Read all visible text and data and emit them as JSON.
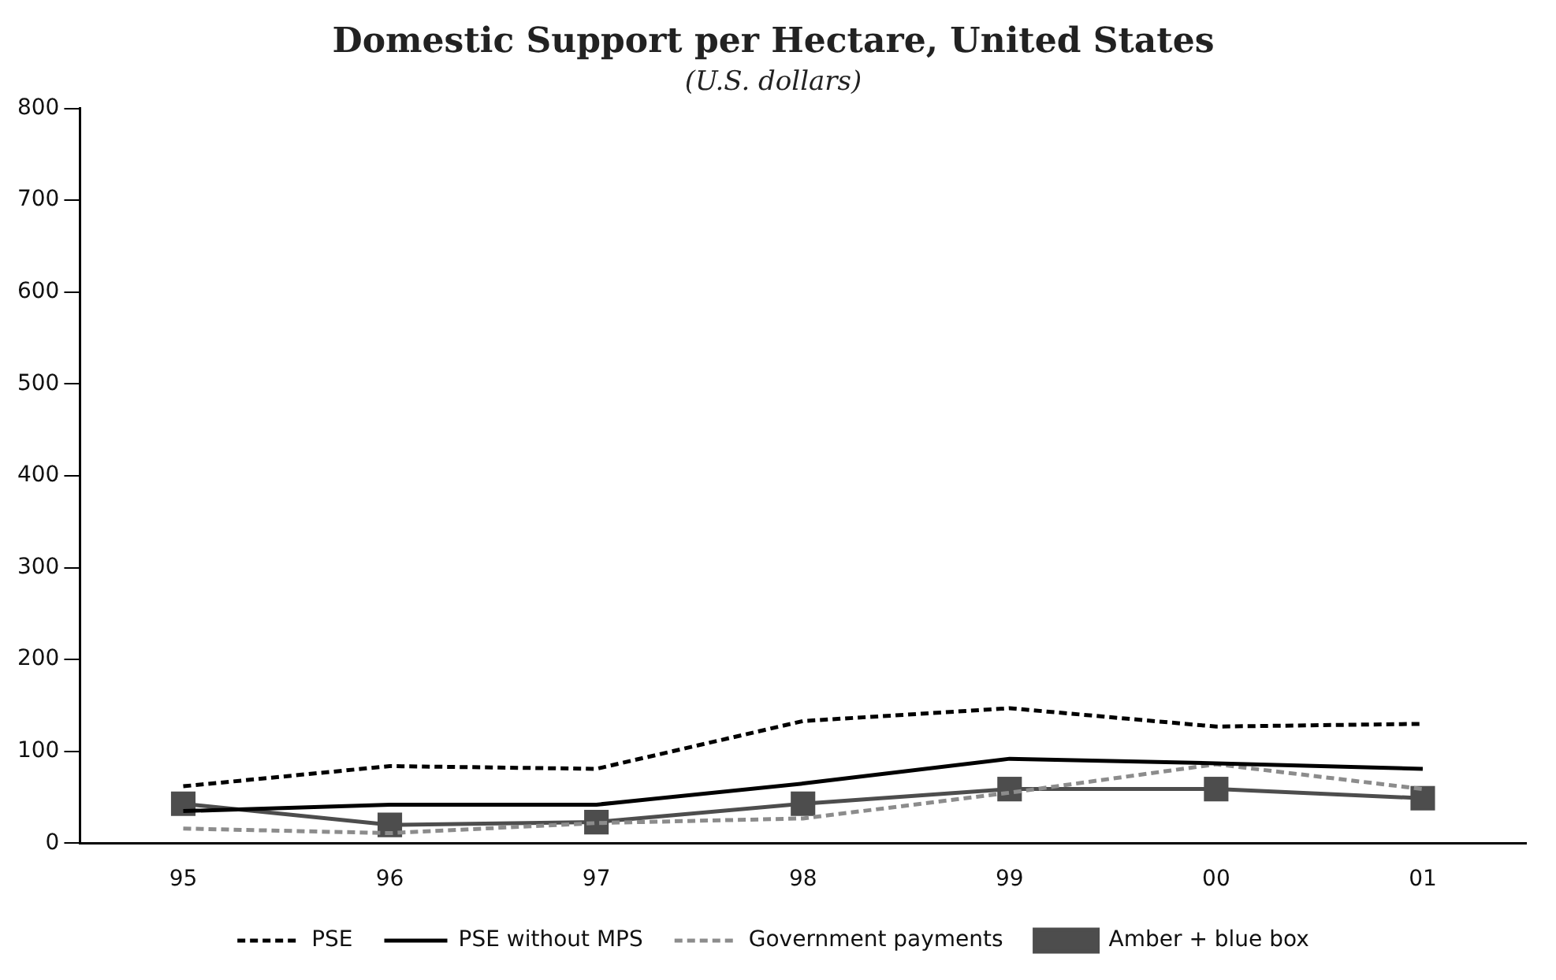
{
  "chart_data": {
    "type": "line",
    "title": "Domestic Support per Hectare, United States",
    "subtitle": "(U.S. dollars)",
    "categories": [
      "95",
      "96",
      "97",
      "98",
      "99",
      "00",
      "01"
    ],
    "series": [
      {
        "name": "PSE",
        "color": "#000000",
        "line_style": "dashed",
        "marker": "none",
        "values": [
          62,
          84,
          81,
          133,
          147,
          127,
          130
        ]
      },
      {
        "name": "PSE without MPS",
        "color": "#000000",
        "line_style": "solid",
        "marker": "none",
        "values": [
          35,
          42,
          42,
          65,
          92,
          87,
          81
        ]
      },
      {
        "name": "Government payments",
        "color": "#8c8c8c",
        "line_style": "dashed",
        "marker": "none",
        "values": [
          16,
          11,
          22,
          27,
          55,
          86,
          59
        ]
      },
      {
        "name": "Amber + blue box",
        "color": "#4d4d4d",
        "line_style": "solid",
        "marker": "square",
        "values": [
          43,
          20,
          23,
          43,
          59,
          59,
          49
        ]
      }
    ],
    "ylim": [
      0,
      800
    ],
    "yticks": [
      0,
      100,
      200,
      300,
      400,
      500,
      600,
      700,
      800
    ],
    "grid": false,
    "legend": "bottom"
  }
}
